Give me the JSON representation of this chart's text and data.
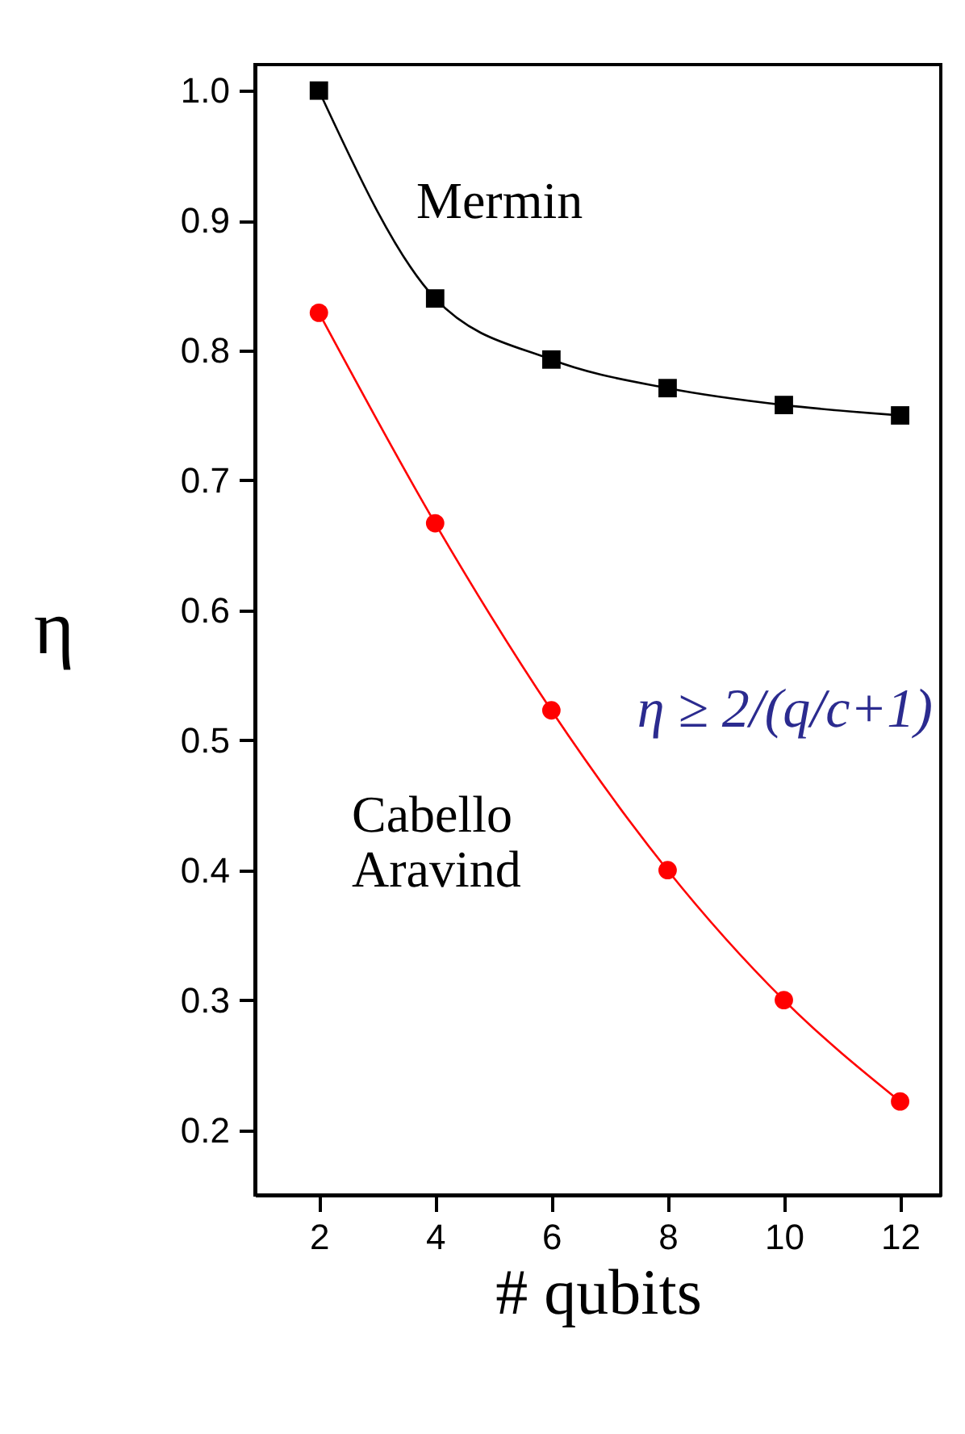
{
  "chart_data": {
    "type": "line",
    "xlabel": "# qubits",
    "ylabel": "η",
    "x": [
      2,
      4,
      6,
      8,
      10,
      12
    ],
    "xlim": [
      0.9,
      12.7
    ],
    "xticks": [
      2,
      4,
      6,
      8,
      10,
      12
    ],
    "ylim": [
      0.15,
      1.02
    ],
    "yticks": [
      0.2,
      0.3,
      0.4,
      0.5,
      0.6,
      0.7,
      0.8,
      0.9,
      {
        "value": 1,
        "label": "1.0"
      }
    ],
    "grid": false,
    "series": [
      {
        "name": "Mermin",
        "color": "#000000",
        "marker": "square",
        "values": [
          1.0,
          0.84,
          0.793,
          0.771,
          0.758,
          0.75
        ]
      },
      {
        "name": "Cabello Aravind",
        "color": "#ff0000",
        "marker": "circle",
        "values": [
          0.829,
          0.667,
          0.523,
          0.4,
          0.3,
          0.222
        ]
      }
    ],
    "annotations": [
      "η ≥ 2/(q/c+1)"
    ]
  }
}
